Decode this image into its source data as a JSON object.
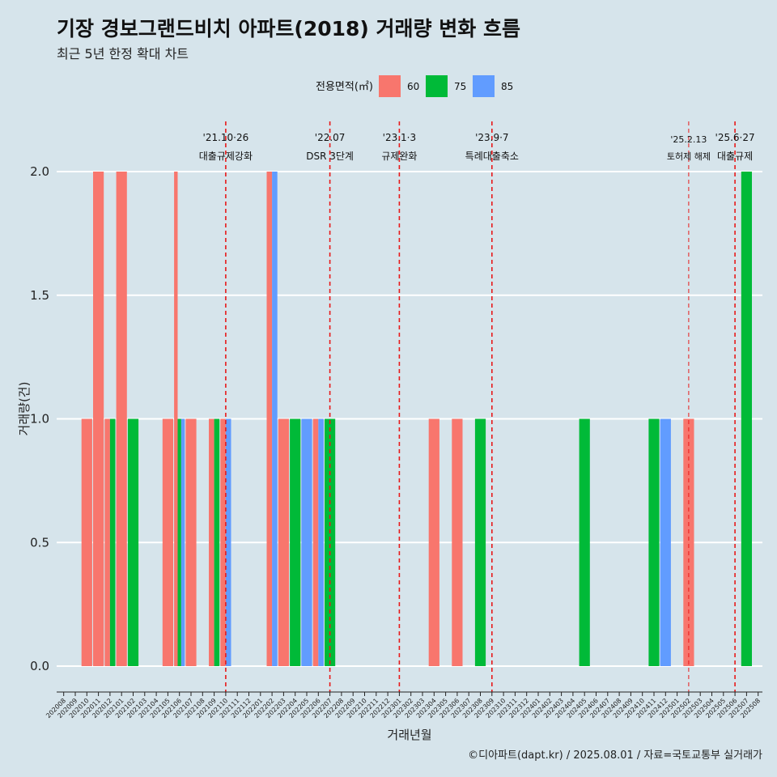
{
  "title": "기장 경보그랜드비치 아파트(2018) 거래량 변화 흐름",
  "subtitle": "최근 5년 한정 확대 차트",
  "caption": "©디아파트(dapt.kr) / 2025.08.01 / 자료=국토교통부 실거래가",
  "chart_data": {
    "type": "bar",
    "xlabel": "거래년월",
    "ylabel": "거래량(건)",
    "ylim": [
      0,
      2
    ],
    "yticks": [
      0.0,
      0.5,
      1.0,
      1.5,
      2.0
    ],
    "ytick_labels": [
      "0.0",
      "0.5",
      "1.0",
      "1.5",
      "2.0"
    ],
    "legend": {
      "title": "전용면적(㎡)",
      "position": "top",
      "entries": [
        {
          "name": "60",
          "color": "#f8766d"
        },
        {
          "name": "75",
          "color": "#00ba38"
        },
        {
          "name": "85",
          "color": "#619cff"
        }
      ]
    },
    "categories": [
      "202008",
      "202009",
      "202010",
      "202011",
      "202012",
      "202101",
      "202102",
      "202103",
      "202104",
      "202105",
      "202106",
      "202107",
      "202108",
      "202109",
      "202110",
      "202111",
      "202112",
      "202201",
      "202202",
      "202203",
      "202204",
      "202205",
      "202206",
      "202207",
      "202208",
      "202209",
      "202210",
      "202211",
      "202212",
      "202301",
      "202302",
      "202303",
      "202304",
      "202305",
      "202306",
      "202307",
      "202308",
      "202309",
      "202310",
      "202311",
      "202312",
      "202401",
      "202402",
      "202403",
      "202404",
      "202405",
      "202406",
      "202407",
      "202408",
      "202409",
      "202410",
      "202411",
      "202412",
      "202501",
      "202502",
      "202503",
      "202504",
      "202505",
      "202506",
      "202507",
      "202508"
    ],
    "bars": [
      {
        "month": "202010",
        "segments": [
          {
            "area": "60",
            "value": 1
          }
        ]
      },
      {
        "month": "202011",
        "segments": [
          {
            "area": "60",
            "value": 2
          }
        ]
      },
      {
        "month": "202012",
        "segments": [
          {
            "area": "60",
            "value": 1
          },
          {
            "area": "75",
            "value": 1
          }
        ]
      },
      {
        "month": "202101",
        "segments": [
          {
            "area": "60",
            "value": 2
          }
        ]
      },
      {
        "month": "202102",
        "segments": [
          {
            "area": "75",
            "value": 1
          }
        ]
      },
      {
        "month": "202105",
        "segments": [
          {
            "area": "60",
            "value": 1
          }
        ]
      },
      {
        "month": "202106",
        "segments": [
          {
            "area": "60",
            "value": 2
          },
          {
            "area": "75",
            "value": 1
          },
          {
            "area": "85",
            "value": 1
          }
        ]
      },
      {
        "month": "202107",
        "segments": [
          {
            "area": "60",
            "value": 1
          }
        ]
      },
      {
        "month": "202109",
        "segments": [
          {
            "area": "60",
            "value": 1
          },
          {
            "area": "75",
            "value": 1
          }
        ]
      },
      {
        "month": "202110",
        "segments": [
          {
            "area": "60",
            "value": 1
          },
          {
            "area": "85",
            "value": 1
          }
        ]
      },
      {
        "month": "202202",
        "segments": [
          {
            "area": "60",
            "value": 2
          },
          {
            "area": "85",
            "value": 2
          }
        ]
      },
      {
        "month": "202203",
        "segments": [
          {
            "area": "60",
            "value": 1
          }
        ]
      },
      {
        "month": "202204",
        "segments": [
          {
            "area": "75",
            "value": 1
          }
        ]
      },
      {
        "month": "202205",
        "segments": [
          {
            "area": "85",
            "value": 1
          }
        ]
      },
      {
        "month": "202206",
        "segments": [
          {
            "area": "60",
            "value": 1
          },
          {
            "area": "85",
            "value": 1
          }
        ]
      },
      {
        "month": "202207",
        "segments": [
          {
            "area": "75",
            "value": 1
          }
        ]
      },
      {
        "month": "202304",
        "segments": [
          {
            "area": "60",
            "value": 1
          }
        ]
      },
      {
        "month": "202306",
        "segments": [
          {
            "area": "60",
            "value": 1
          }
        ]
      },
      {
        "month": "202308",
        "segments": [
          {
            "area": "75",
            "value": 1
          }
        ]
      },
      {
        "month": "202405",
        "segments": [
          {
            "area": "75",
            "value": 1
          }
        ]
      },
      {
        "month": "202411",
        "segments": [
          {
            "area": "75",
            "value": 1
          }
        ]
      },
      {
        "month": "202412",
        "segments": [
          {
            "area": "85",
            "value": 1
          }
        ]
      },
      {
        "month": "202502",
        "segments": [
          {
            "area": "60",
            "value": 1
          }
        ]
      },
      {
        "month": "202507",
        "segments": [
          {
            "area": "75",
            "value": 2
          }
        ]
      }
    ],
    "annotations": [
      {
        "month": "202110",
        "date": "'21.10·26",
        "label": "대출규제강화",
        "style": "dashed"
      },
      {
        "month": "202207",
        "date": "'22.07",
        "label": "DSR 3단계",
        "style": "dashed"
      },
      {
        "month": "202301",
        "date": "'23.1·3",
        "label": "규제완화",
        "style": "dashed"
      },
      {
        "month": "202309",
        "date": "'23.9·7",
        "label": "특례대출축소",
        "style": "dashed"
      },
      {
        "month": "202502",
        "date": "'25.2.13",
        "label": "토허제 해제",
        "style": "thin-dashed"
      },
      {
        "month": "202506",
        "date": "'25.6·27",
        "label": "대출규제",
        "style": "dashed"
      }
    ]
  }
}
